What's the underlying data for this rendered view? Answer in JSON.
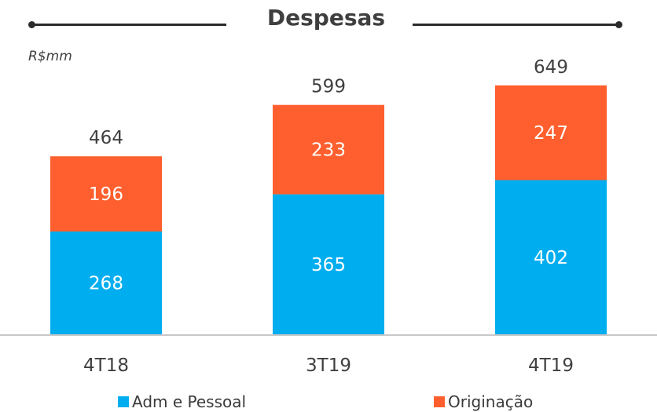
{
  "chart_data": {
    "type": "bar",
    "stacked": true,
    "title": "Despesas",
    "unit_label": "R$mm",
    "categories": [
      "4T18",
      "3T19",
      "4T19"
    ],
    "series": [
      {
        "name": "Adm e Pessoal",
        "color": "#00AEEF",
        "values": [
          268,
          365,
          402
        ]
      },
      {
        "name": "Originação",
        "color": "#FF5F2E",
        "values": [
          196,
          233,
          247
        ]
      }
    ],
    "totals": [
      464,
      599,
      649
    ],
    "ylim": [
      0,
      700
    ],
    "grid": false,
    "legend_position": "bottom"
  }
}
